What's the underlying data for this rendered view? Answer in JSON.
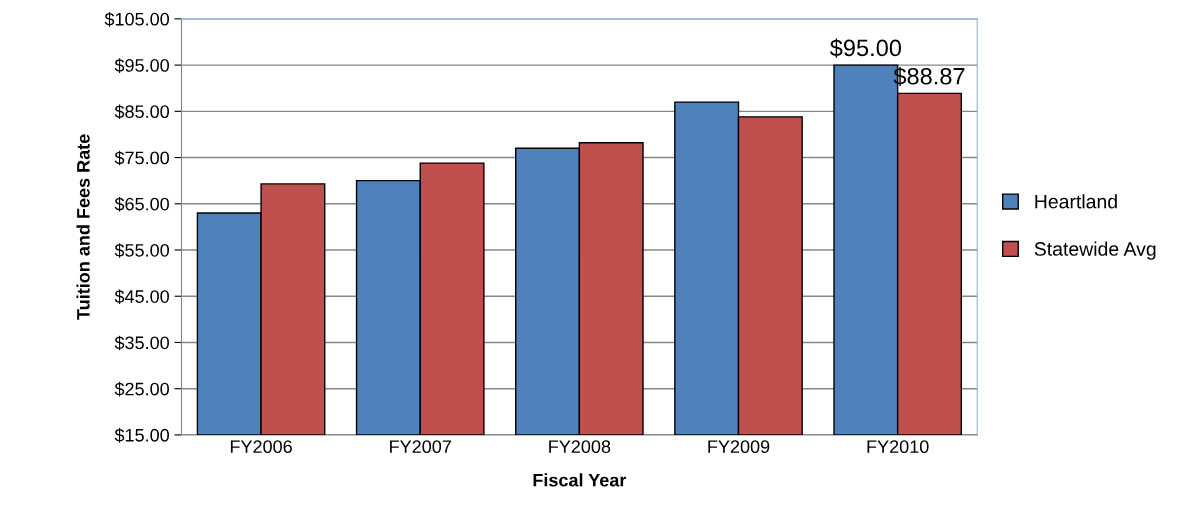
{
  "chart_data": {
    "type": "bar",
    "xlabel": "Fiscal Year",
    "ylabel": "Tuition and Fees Rate",
    "categories": [
      "FY2006",
      "FY2007",
      "FY2008",
      "FY2009",
      "FY2010"
    ],
    "series": [
      {
        "name": "Heartland",
        "color": "#4f81bd",
        "values": [
          63,
          70,
          77,
          87,
          95
        ],
        "value_labels": [
          null,
          null,
          null,
          null,
          "$95.00"
        ]
      },
      {
        "name": "Statewide Avg",
        "color": "#c0504d",
        "values": [
          69.3,
          73.8,
          78.2,
          83.8,
          88.87
        ],
        "value_labels": [
          null,
          null,
          null,
          null,
          "$88.87"
        ]
      }
    ],
    "ylim": [
      15,
      105
    ],
    "yticks": [
      {
        "value": 15,
        "label": "$15.00"
      },
      {
        "value": 25,
        "label": "$25.00"
      },
      {
        "value": 35,
        "label": "$35.00"
      },
      {
        "value": 45,
        "label": "$45.00"
      },
      {
        "value": 55,
        "label": "$55.00"
      },
      {
        "value": 65,
        "label": "$65.00"
      },
      {
        "value": 75,
        "label": "$75.00"
      },
      {
        "value": 85,
        "label": "$85.00"
      },
      {
        "value": 95,
        "label": "$95.00"
      },
      {
        "value": 105,
        "label": "$105.00"
      }
    ],
    "grid": "y",
    "legend": "right"
  }
}
